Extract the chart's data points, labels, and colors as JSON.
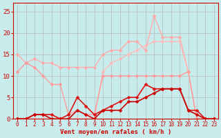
{
  "bg_color": "#c8ecec",
  "grid_color": "#b0b0b0",
  "xlabel": "Vent moyen/en rafales ( km/h )",
  "xlim": [
    -0.5,
    23.5
  ],
  "ylim": [
    0,
    27
  ],
  "yticks": [
    0,
    5,
    10,
    15,
    20,
    25
  ],
  "xticks": [
    0,
    1,
    2,
    3,
    4,
    5,
    6,
    7,
    8,
    9,
    10,
    11,
    12,
    13,
    14,
    15,
    16,
    17,
    18,
    19,
    20,
    21,
    22,
    23
  ],
  "series": [
    {
      "x": [
        0,
        1,
        2,
        3,
        4,
        5,
        6,
        7,
        8,
        9,
        10,
        11,
        12,
        13,
        14,
        15,
        16,
        17,
        18,
        19,
        20,
        21,
        22,
        23
      ],
      "y": [
        15,
        13,
        14,
        13,
        13,
        12,
        12,
        12,
        12,
        12,
        15,
        16,
        16,
        18,
        18,
        16,
        24,
        19,
        19,
        19,
        11,
        0,
        0,
        0
      ],
      "color": "#ffaaaa",
      "lw": 1.0,
      "ms": 2.5
    },
    {
      "x": [
        0,
        1,
        2,
        3,
        4,
        5,
        6,
        7,
        8,
        9,
        10,
        11,
        12,
        13,
        14,
        15,
        16,
        17,
        18,
        19,
        20,
        21,
        22,
        23
      ],
      "y": [
        0,
        0,
        0,
        0,
        0,
        0,
        0,
        0,
        0,
        0,
        11,
        13,
        14,
        15,
        16,
        17,
        18,
        18,
        18,
        18,
        11,
        0,
        0,
        0
      ],
      "color": "#ffbbbb",
      "lw": 1.0,
      "ms": 2.5
    },
    {
      "x": [
        0,
        1,
        2,
        3,
        4,
        5,
        6,
        7,
        8,
        9,
        10,
        11,
        12,
        13,
        14,
        15,
        16,
        17,
        18,
        19,
        20,
        21,
        22,
        23
      ],
      "y": [
        11,
        13,
        12,
        10,
        8,
        8,
        1,
        2,
        1,
        1,
        10,
        10,
        10,
        10,
        10,
        10,
        10,
        10,
        10,
        10,
        11,
        0,
        0,
        0
      ],
      "color": "#ff9999",
      "lw": 1.0,
      "ms": 2.5
    },
    {
      "x": [
        0,
        1,
        2,
        3,
        4,
        5,
        6,
        7,
        8,
        9,
        10,
        11,
        12,
        13,
        14,
        15,
        16,
        17,
        18,
        19,
        20,
        21,
        22,
        23
      ],
      "y": [
        0,
        0,
        1,
        1,
        1,
        0,
        1,
        5,
        3,
        1,
        2,
        3,
        4,
        5,
        5,
        8,
        7,
        7,
        7,
        7,
        2,
        2,
        0,
        0
      ],
      "color": "#dd1111",
      "lw": 1.2,
      "ms": 2.5
    },
    {
      "x": [
        0,
        1,
        2,
        3,
        4,
        5,
        6,
        7,
        8,
        9,
        10,
        11,
        12,
        13,
        14,
        15,
        16,
        17,
        18,
        19,
        20,
        21,
        22,
        23
      ],
      "y": [
        0,
        0,
        1,
        1,
        0,
        0,
        0,
        2,
        1,
        0,
        2,
        2,
        2,
        4,
        4,
        5,
        6,
        7,
        7,
        7,
        2,
        1,
        0,
        0
      ],
      "color": "#cc0000",
      "lw": 1.2,
      "ms": 2.5
    }
  ]
}
